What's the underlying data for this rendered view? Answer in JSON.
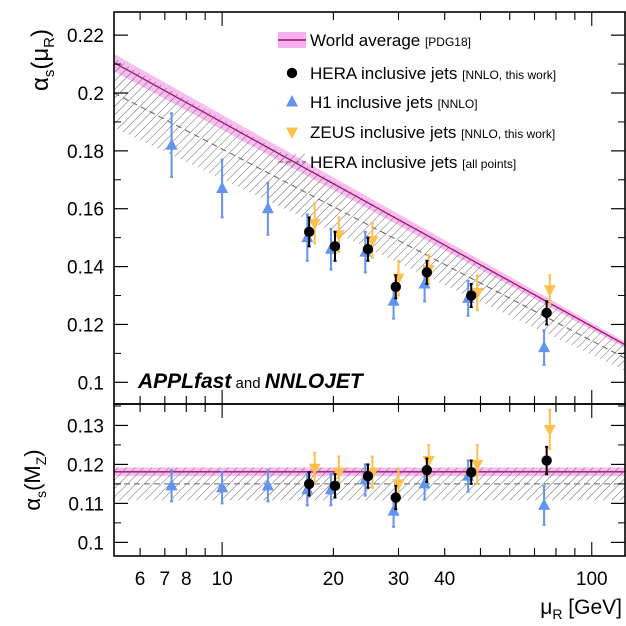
{
  "chart_data": [
    {
      "type": "scatter",
      "panel": "top",
      "ylabel": "αs (μR)",
      "ylabel_parts": {
        "sym": "α",
        "sub": "s",
        "arg": "(μ",
        "argsub": "R",
        "close": ")"
      },
      "ylim": [
        0.0925,
        0.228
      ],
      "yticks": [
        0.1,
        0.12,
        0.14,
        0.16,
        0.18,
        0.2,
        0.22
      ],
      "ytick_labels": [
        "0.1",
        "0.12",
        "0.14",
        "0.16",
        "0.18",
        "0.2",
        "0.22"
      ],
      "x_scale": "log",
      "xlim": [
        5.1,
        123
      ],
      "annotation": {
        "part1": "APPLfast",
        "part2": " and ",
        "part3": "NNLOJET"
      },
      "legend": [
        {
          "label": "World average",
          "note": "[PDG18]",
          "marker": "band",
          "color": "#a0106a"
        },
        {
          "label": "HERA inclusive jets",
          "note": "[NNLO, this work]",
          "marker": "circle",
          "color": "#000000"
        },
        {
          "label": "H1 inclusive jets",
          "note": "[NNLO]",
          "marker": "triangle-up",
          "color": "#6495ed"
        },
        {
          "label": "ZEUS inclusive jets",
          "note": "[NNLO, this work]",
          "marker": "triangle-down",
          "color": "#ffc04d"
        },
        {
          "label": "HERA inclusive jets",
          "note": "[all points]",
          "marker": "hatched-band",
          "color": "#707070"
        }
      ],
      "legend_position": "top-right",
      "bands": [
        {
          "name": "World average",
          "x": [
            5.1,
            123
          ],
          "center": [
            0.2105,
            0.113
          ],
          "half_width": [
            0.003,
            0.0011
          ],
          "color": "#a0106a",
          "fill": "#f7b0ee"
        },
        {
          "name": "HERA inclusive jets [all points]",
          "x": [
            5.1,
            123
          ],
          "center": [
            0.2,
            0.1084
          ],
          "half_width": [
            0.012,
            0.0044
          ],
          "color": "#707070"
        }
      ],
      "series": [
        {
          "name": "H1 inclusive jets",
          "marker": "triangle-up",
          "color": "#6495ed",
          "x": [
            7.3,
            10.0,
            13.3,
            17.0,
            19.7,
            24.4,
            29.1,
            35.3,
            46.3,
            74.3
          ],
          "y": [
            0.182,
            0.167,
            0.16,
            0.15,
            0.146,
            0.145,
            0.128,
            0.134,
            0.129,
            0.112
          ],
          "err": [
            0.011,
            0.01,
            0.009,
            0.008,
            0.007,
            0.007,
            0.006,
            0.006,
            0.006,
            0.006
          ]
        },
        {
          "name": "ZEUS inclusive jets",
          "marker": "triangle-down",
          "color": "#ffc04d",
          "x": [
            17.8,
            20.7,
            25.5,
            30.0,
            36.2,
            49.0,
            77.0
          ],
          "y": [
            0.155,
            0.151,
            0.149,
            0.136,
            0.139,
            0.131,
            0.132
          ],
          "err": [
            0.007,
            0.006,
            0.006,
            0.006,
            0.005,
            0.006,
            0.005
          ]
        },
        {
          "name": "HERA inclusive jets",
          "marker": "circle",
          "color": "#000000",
          "x": [
            17.2,
            20.2,
            24.8,
            29.5,
            35.8,
            47.2,
            75.5
          ],
          "y": [
            0.152,
            0.147,
            0.146,
            0.133,
            0.138,
            0.13,
            0.124
          ],
          "err": [
            0.005,
            0.005,
            0.004,
            0.004,
            0.004,
            0.004,
            0.004
          ]
        }
      ]
    },
    {
      "type": "scatter",
      "panel": "bottom",
      "ylabel": "αs (MZ)",
      "ylabel_parts": {
        "sym": "α",
        "sub": "s",
        "arg": "(M",
        "argsub": "Z",
        "close": ")"
      },
      "ylim": [
        0.0965,
        0.1355
      ],
      "yticks": [
        0.1,
        0.11,
        0.12,
        0.13
      ],
      "ytick_labels": [
        "0.1",
        "0.11",
        "0.12",
        "0.13"
      ],
      "x_scale": "log",
      "xlim": [
        5.1,
        123
      ],
      "xlabel": "μR [GeV]",
      "xlabel_parts": {
        "sym": "μ",
        "sub": "R",
        "unit": " [GeV]"
      },
      "xtick_values": [
        6,
        7,
        8,
        10,
        20,
        30,
        40,
        100
      ],
      "xtick_labels": [
        "6",
        "7",
        "8",
        "10",
        "20",
        "30",
        "40",
        "100"
      ],
      "bands": [
        {
          "name": "World average",
          "x": [
            5.1,
            123
          ],
          "center": [
            0.1181,
            0.1181
          ],
          "half_width": [
            0.0011,
            0.0011
          ],
          "color": "#a0106a",
          "fill": "#f7b0ee"
        },
        {
          "name": "HERA inclusive jets [all points]",
          "x": [
            5.1,
            123
          ],
          "center": [
            0.115,
            0.115
          ],
          "half_width": [
            0.0042,
            0.0042
          ],
          "color": "#707070"
        }
      ],
      "series": [
        {
          "name": "H1 inclusive jets",
          "marker": "triangle-up",
          "color": "#6495ed",
          "x": [
            7.3,
            10.0,
            13.3,
            17.0,
            19.7,
            24.4,
            29.1,
            35.3,
            46.3,
            74.3
          ],
          "y": [
            0.1145,
            0.114,
            0.1145,
            0.1135,
            0.1135,
            0.116,
            0.108,
            0.115,
            0.117,
            0.1095
          ],
          "err": [
            0.004,
            0.004,
            0.004,
            0.004,
            0.004,
            0.004,
            0.004,
            0.004,
            0.004,
            0.005
          ]
        },
        {
          "name": "ZEUS inclusive jets",
          "marker": "triangle-down",
          "color": "#ffc04d",
          "x": [
            17.8,
            20.7,
            25.5,
            30.0,
            36.2,
            49.0,
            77.0
          ],
          "y": [
            0.119,
            0.118,
            0.118,
            0.115,
            0.121,
            0.12,
            0.129
          ],
          "err": [
            0.004,
            0.004,
            0.004,
            0.004,
            0.004,
            0.005,
            0.005
          ]
        },
        {
          "name": "HERA inclusive jets",
          "marker": "circle",
          "color": "#000000",
          "x": [
            17.2,
            20.2,
            24.8,
            29.5,
            35.8,
            47.2,
            75.5
          ],
          "y": [
            0.115,
            0.1145,
            0.117,
            0.1115,
            0.1185,
            0.118,
            0.121
          ],
          "err": [
            0.003,
            0.003,
            0.003,
            0.003,
            0.003,
            0.003,
            0.0035
          ]
        }
      ]
    }
  ]
}
